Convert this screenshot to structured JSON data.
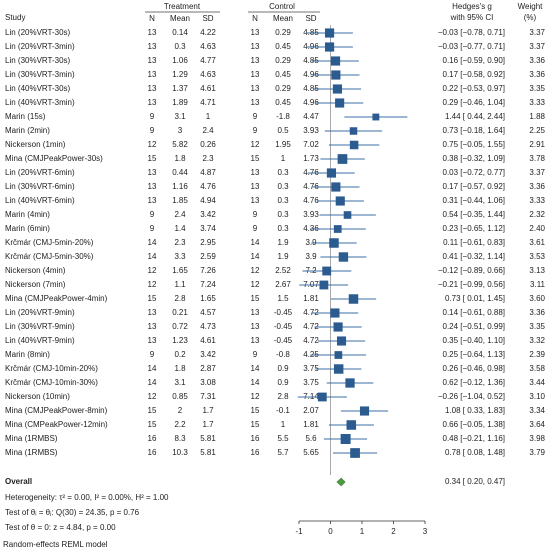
{
  "header": {
    "study": "Study",
    "treatment": "Treatment",
    "control": "Control",
    "n": "N",
    "mean": "Mean",
    "sd": "SD",
    "effect_1": "Hedges's g",
    "effect_2": "with 95% CI",
    "weight_1": "Weight",
    "weight_2": "(%)"
  },
  "rows": [
    {
      "study": "Lin (20%VRT-30s)",
      "treatment": [
        13,
        0.14,
        4.22
      ],
      "control": [
        13,
        0.29,
        4.85
      ],
      "g": -0.03,
      "ci": [
        -0.78,
        0.71
      ],
      "effect_label": "−0.03 [−0.78, 0.71]",
      "weight": 3.37,
      "weight_label": "3.37"
    },
    {
      "study": "Lin (20%VRT-3min)",
      "treatment": [
        13,
        0.3,
        4.63
      ],
      "control": [
        13,
        0.45,
        4.96
      ],
      "g": -0.03,
      "ci": [
        -0.77,
        0.71
      ],
      "effect_label": "−0.03 [−0.77, 0.71]",
      "weight": 3.37,
      "weight_label": "3.37"
    },
    {
      "study": "Lin (30%VRT-30s)",
      "treatment": [
        13,
        1.06,
        4.77
      ],
      "control": [
        13,
        0.29,
        4.85
      ],
      "g": 0.16,
      "ci": [
        -0.59,
        0.9
      ],
      "effect_label": "0.16 [−0.59, 0.90]",
      "weight": 3.36,
      "weight_label": "3.36"
    },
    {
      "study": "Lin (30%VRT-3min)",
      "treatment": [
        13,
        1.29,
        4.63
      ],
      "control": [
        13,
        0.45,
        4.96
      ],
      "g": 0.17,
      "ci": [
        -0.58,
        0.92
      ],
      "effect_label": "0.17 [−0.58, 0.92]",
      "weight": 3.36,
      "weight_label": "3.36"
    },
    {
      "study": "Lin (40%VRT-30s)",
      "treatment": [
        13,
        1.37,
        4.61
      ],
      "control": [
        13,
        0.29,
        4.85
      ],
      "g": 0.22,
      "ci": [
        -0.53,
        0.97
      ],
      "effect_label": "0.22 [−0.53, 0.97]",
      "weight": 3.35,
      "weight_label": "3.35"
    },
    {
      "study": "Lin (40%VRT-3min)",
      "treatment": [
        13,
        1.89,
        4.71
      ],
      "control": [
        13,
        0.45,
        4.96
      ],
      "g": 0.29,
      "ci": [
        -0.46,
        1.04
      ],
      "effect_label": "0.29 [−0.46, 1.04]",
      "weight": 3.33,
      "weight_label": "3.33"
    },
    {
      "study": "Marin (15s)",
      "treatment": [
        9,
        3.1,
        1
      ],
      "control": [
        9,
        -1.8,
        4.47
      ],
      "g": 1.44,
      "ci": [
        0.44,
        2.44
      ],
      "effect_label": "1.44 [ 0.44, 2.44]",
      "weight": 1.88,
      "weight_label": "1.88"
    },
    {
      "study": "Marin (2min)",
      "treatment": [
        9,
        3,
        2.4
      ],
      "control": [
        9,
        0.5,
        3.93
      ],
      "g": 0.73,
      "ci": [
        -0.18,
        1.64
      ],
      "effect_label": "0.73 [−0.18, 1.64]",
      "weight": 2.25,
      "weight_label": "2.25"
    },
    {
      "study": "Nickerson (1min)",
      "treatment": [
        12,
        5.82,
        0.26
      ],
      "control": [
        12,
        1.95,
        7.02
      ],
      "g": 0.75,
      "ci": [
        -0.05,
        1.55
      ],
      "effect_label": "0.75 [−0.05, 1.55]",
      "weight": 2.91,
      "weight_label": "2.91"
    },
    {
      "study": "Mina (CMJPeakPower-30s)",
      "treatment": [
        15,
        1.8,
        2.3
      ],
      "control": [
        15,
        1,
        1.73
      ],
      "g": 0.38,
      "ci": [
        -0.32,
        1.09
      ],
      "effect_label": "0.38 [−0.32, 1.09]",
      "weight": 3.78,
      "weight_label": "3.78"
    },
    {
      "study": "Lin (20%VRT-6min)",
      "treatment": [
        13,
        0.44,
        4.87
      ],
      "control": [
        13,
        0.3,
        4.76
      ],
      "g": 0.03,
      "ci": [
        -0.72,
        0.77
      ],
      "effect_label": "0.03 [−0.72, 0.77]",
      "weight": 3.37,
      "weight_label": "3.37"
    },
    {
      "study": "Lin (30%VRT-6min)",
      "treatment": [
        13,
        1.16,
        4.76
      ],
      "control": [
        13,
        0.3,
        4.76
      ],
      "g": 0.17,
      "ci": [
        -0.57,
        0.92
      ],
      "effect_label": "0.17 [−0.57, 0.92]",
      "weight": 3.36,
      "weight_label": "3.36"
    },
    {
      "study": "Lin (40%VRT-6min)",
      "treatment": [
        13,
        1.85,
        4.94
      ],
      "control": [
        13,
        0.3,
        4.76
      ],
      "g": 0.31,
      "ci": [
        -0.44,
        1.06
      ],
      "effect_label": "0.31 [−0.44, 1.06]",
      "weight": 3.33,
      "weight_label": "3.33"
    },
    {
      "study": "Marin (4min)",
      "treatment": [
        9,
        2.4,
        3.42
      ],
      "control": [
        9,
        0.3,
        3.93
      ],
      "g": 0.54,
      "ci": [
        -0.35,
        1.44
      ],
      "effect_label": "0.54 [−0.35, 1.44]",
      "weight": 2.32,
      "weight_label": "2.32"
    },
    {
      "study": "Marin (6min)",
      "treatment": [
        9,
        1.4,
        3.74
      ],
      "control": [
        9,
        0.3,
        4.36
      ],
      "g": 0.23,
      "ci": [
        -0.65,
        1.12
      ],
      "effect_label": "0.23 [−0.65, 1.12]",
      "weight": 2.4,
      "weight_label": "2.40"
    },
    {
      "study": "Krčmár (CMJ-5min-20%)",
      "treatment": [
        14,
        2.3,
        2.95
      ],
      "control": [
        14,
        1.9,
        3.9
      ],
      "g": 0.11,
      "ci": [
        -0.61,
        0.83
      ],
      "effect_label": "0.11 [−0.61, 0.83]",
      "weight": 3.61,
      "weight_label": "3.61"
    },
    {
      "study": "Krčmár (CMJ-5min-30%)",
      "treatment": [
        14,
        3.3,
        2.59
      ],
      "control": [
        14,
        1.9,
        3.9
      ],
      "g": 0.41,
      "ci": [
        -0.32,
        1.14
      ],
      "effect_label": "0.41 [−0.32, 1.14]",
      "weight": 3.53,
      "weight_label": "3.53"
    },
    {
      "study": "Nickerson (4min)",
      "treatment": [
        12,
        1.65,
        7.26
      ],
      "control": [
        12,
        2.52,
        7.2
      ],
      "g": -0.12,
      "ci": [
        -0.89,
        0.66
      ],
      "effect_label": "−0.12 [−0.89, 0.66]",
      "weight": 3.13,
      "weight_label": "3.13"
    },
    {
      "study": "Nickerson (7min)",
      "treatment": [
        12,
        1.1,
        7.24
      ],
      "control": [
        12,
        2.67,
        7.07
      ],
      "g": -0.21,
      "ci": [
        -0.99,
        0.56
      ],
      "effect_label": "−0.21 [−0.99, 0.56]",
      "weight": 3.11,
      "weight_label": "3.11"
    },
    {
      "study": "Mina (CMJPeakPower-4min)",
      "treatment": [
        15,
        2.8,
        1.65
      ],
      "control": [
        15,
        1.5,
        1.81
      ],
      "g": 0.73,
      "ci": [
        0.01,
        1.45
      ],
      "effect_label": "0.73 [ 0.01, 1.45]",
      "weight": 3.6,
      "weight_label": "3.60"
    },
    {
      "study": "Lin (20%VRT-9min)",
      "treatment": [
        13,
        0.21,
        4.57
      ],
      "control": [
        13,
        -0.45,
        4.72
      ],
      "g": 0.14,
      "ci": [
        -0.61,
        0.88
      ],
      "effect_label": "0.14 [−0.61, 0.88]",
      "weight": 3.36,
      "weight_label": "3.36"
    },
    {
      "study": "Lin (30%VRT-9min)",
      "treatment": [
        13,
        0.72,
        4.73
      ],
      "control": [
        13,
        -0.45,
        4.72
      ],
      "g": 0.24,
      "ci": [
        -0.51,
        0.99
      ],
      "effect_label": "0.24 [−0.51, 0.99]",
      "weight": 3.35,
      "weight_label": "3.35"
    },
    {
      "study": "Lin (40%VRT-9min)",
      "treatment": [
        13,
        1.23,
        4.61
      ],
      "control": [
        13,
        -0.45,
        4.72
      ],
      "g": 0.35,
      "ci": [
        -0.4,
        1.1
      ],
      "effect_label": "0.35 [−0.40, 1.10]",
      "weight": 3.32,
      "weight_label": "3.32"
    },
    {
      "study": "Marin (8min)",
      "treatment": [
        9,
        0.2,
        3.42
      ],
      "control": [
        9,
        -0.8,
        4.25
      ],
      "g": 0.25,
      "ci": [
        -0.64,
        1.13
      ],
      "effect_label": "0.25 [−0.64, 1.13]",
      "weight": 2.39,
      "weight_label": "2.39"
    },
    {
      "study": "Krčmár (CMJ-10min-20%)",
      "treatment": [
        14,
        1.8,
        2.87
      ],
      "control": [
        14,
        0.9,
        3.75
      ],
      "g": 0.26,
      "ci": [
        -0.46,
        0.98
      ],
      "effect_label": "0.26 [−0.46, 0.98]",
      "weight": 3.58,
      "weight_label": "3.58"
    },
    {
      "study": "Krčmár (CMJ-10min-30%)",
      "treatment": [
        14,
        3.1,
        3.08
      ],
      "control": [
        14,
        0.9,
        3.75
      ],
      "g": 0.62,
      "ci": [
        -0.12,
        1.36
      ],
      "effect_label": "0.62 [−0.12, 1.36]",
      "weight": 3.44,
      "weight_label": "3.44"
    },
    {
      "study": "Nickerson (10min)",
      "treatment": [
        12,
        0.85,
        7.31
      ],
      "control": [
        12,
        2.8,
        7.14
      ],
      "g": -0.26,
      "ci": [
        -1.04,
        0.52
      ],
      "effect_label": "−0.26 [−1.04, 0.52]",
      "weight": 3.1,
      "weight_label": "3.10"
    },
    {
      "study": "Mina (CMJPeakPower-8min)",
      "treatment": [
        15,
        2,
        1.7
      ],
      "control": [
        15,
        -0.1,
        2.07
      ],
      "g": 1.08,
      "ci": [
        0.33,
        1.83
      ],
      "effect_label": "1.08 [ 0.33, 1.83]",
      "weight": 3.34,
      "weight_label": "3.34"
    },
    {
      "study": "Mina (CMPeakPower-12min)",
      "treatment": [
        15,
        2.2,
        1.7
      ],
      "control": [
        15,
        1,
        1.81
      ],
      "g": 0.66,
      "ci": [
        -0.05,
        1.38
      ],
      "effect_label": "0.66 [−0.05, 1.38]",
      "weight": 3.64,
      "weight_label": "3.64"
    },
    {
      "study": "Mina (1RMBS)",
      "treatment": [
        16,
        8.3,
        5.81
      ],
      "control": [
        16,
        5.5,
        5.6
      ],
      "g": 0.48,
      "ci": [
        -0.21,
        1.16
      ],
      "effect_label": "0.48 [−0.21, 1.16]",
      "weight": 3.98,
      "weight_label": "3.98"
    },
    {
      "study": "Mina (1RMBS)",
      "treatment": [
        16,
        10.3,
        5.81
      ],
      "control": [
        16,
        5.7,
        5.65
      ],
      "g": 0.78,
      "ci": [
        0.08,
        1.48
      ],
      "effect_label": "0.78 [ 0.08, 1.48]",
      "weight": 3.79,
      "weight_label": "3.79"
    }
  ],
  "overall": {
    "label": "Overall",
    "g": 0.34,
    "ci": [
      0.2,
      0.47
    ],
    "effect_label": "0.34 [ 0.20, 0.47]"
  },
  "notes": [
    "Heterogeneity: τ² = 0.00, I² = 0.00%, H² = 1.00",
    "Test of θᵢ = θⱼ: Q(30) = 24.35, p = 0.76",
    "Test of θ = 0: z = 4.84, p = 0.00"
  ],
  "model": "Random-effects REML model",
  "axis": {
    "xlim": [
      -1,
      3
    ],
    "xticks": [
      -1,
      0,
      1,
      2,
      3
    ]
  }
}
